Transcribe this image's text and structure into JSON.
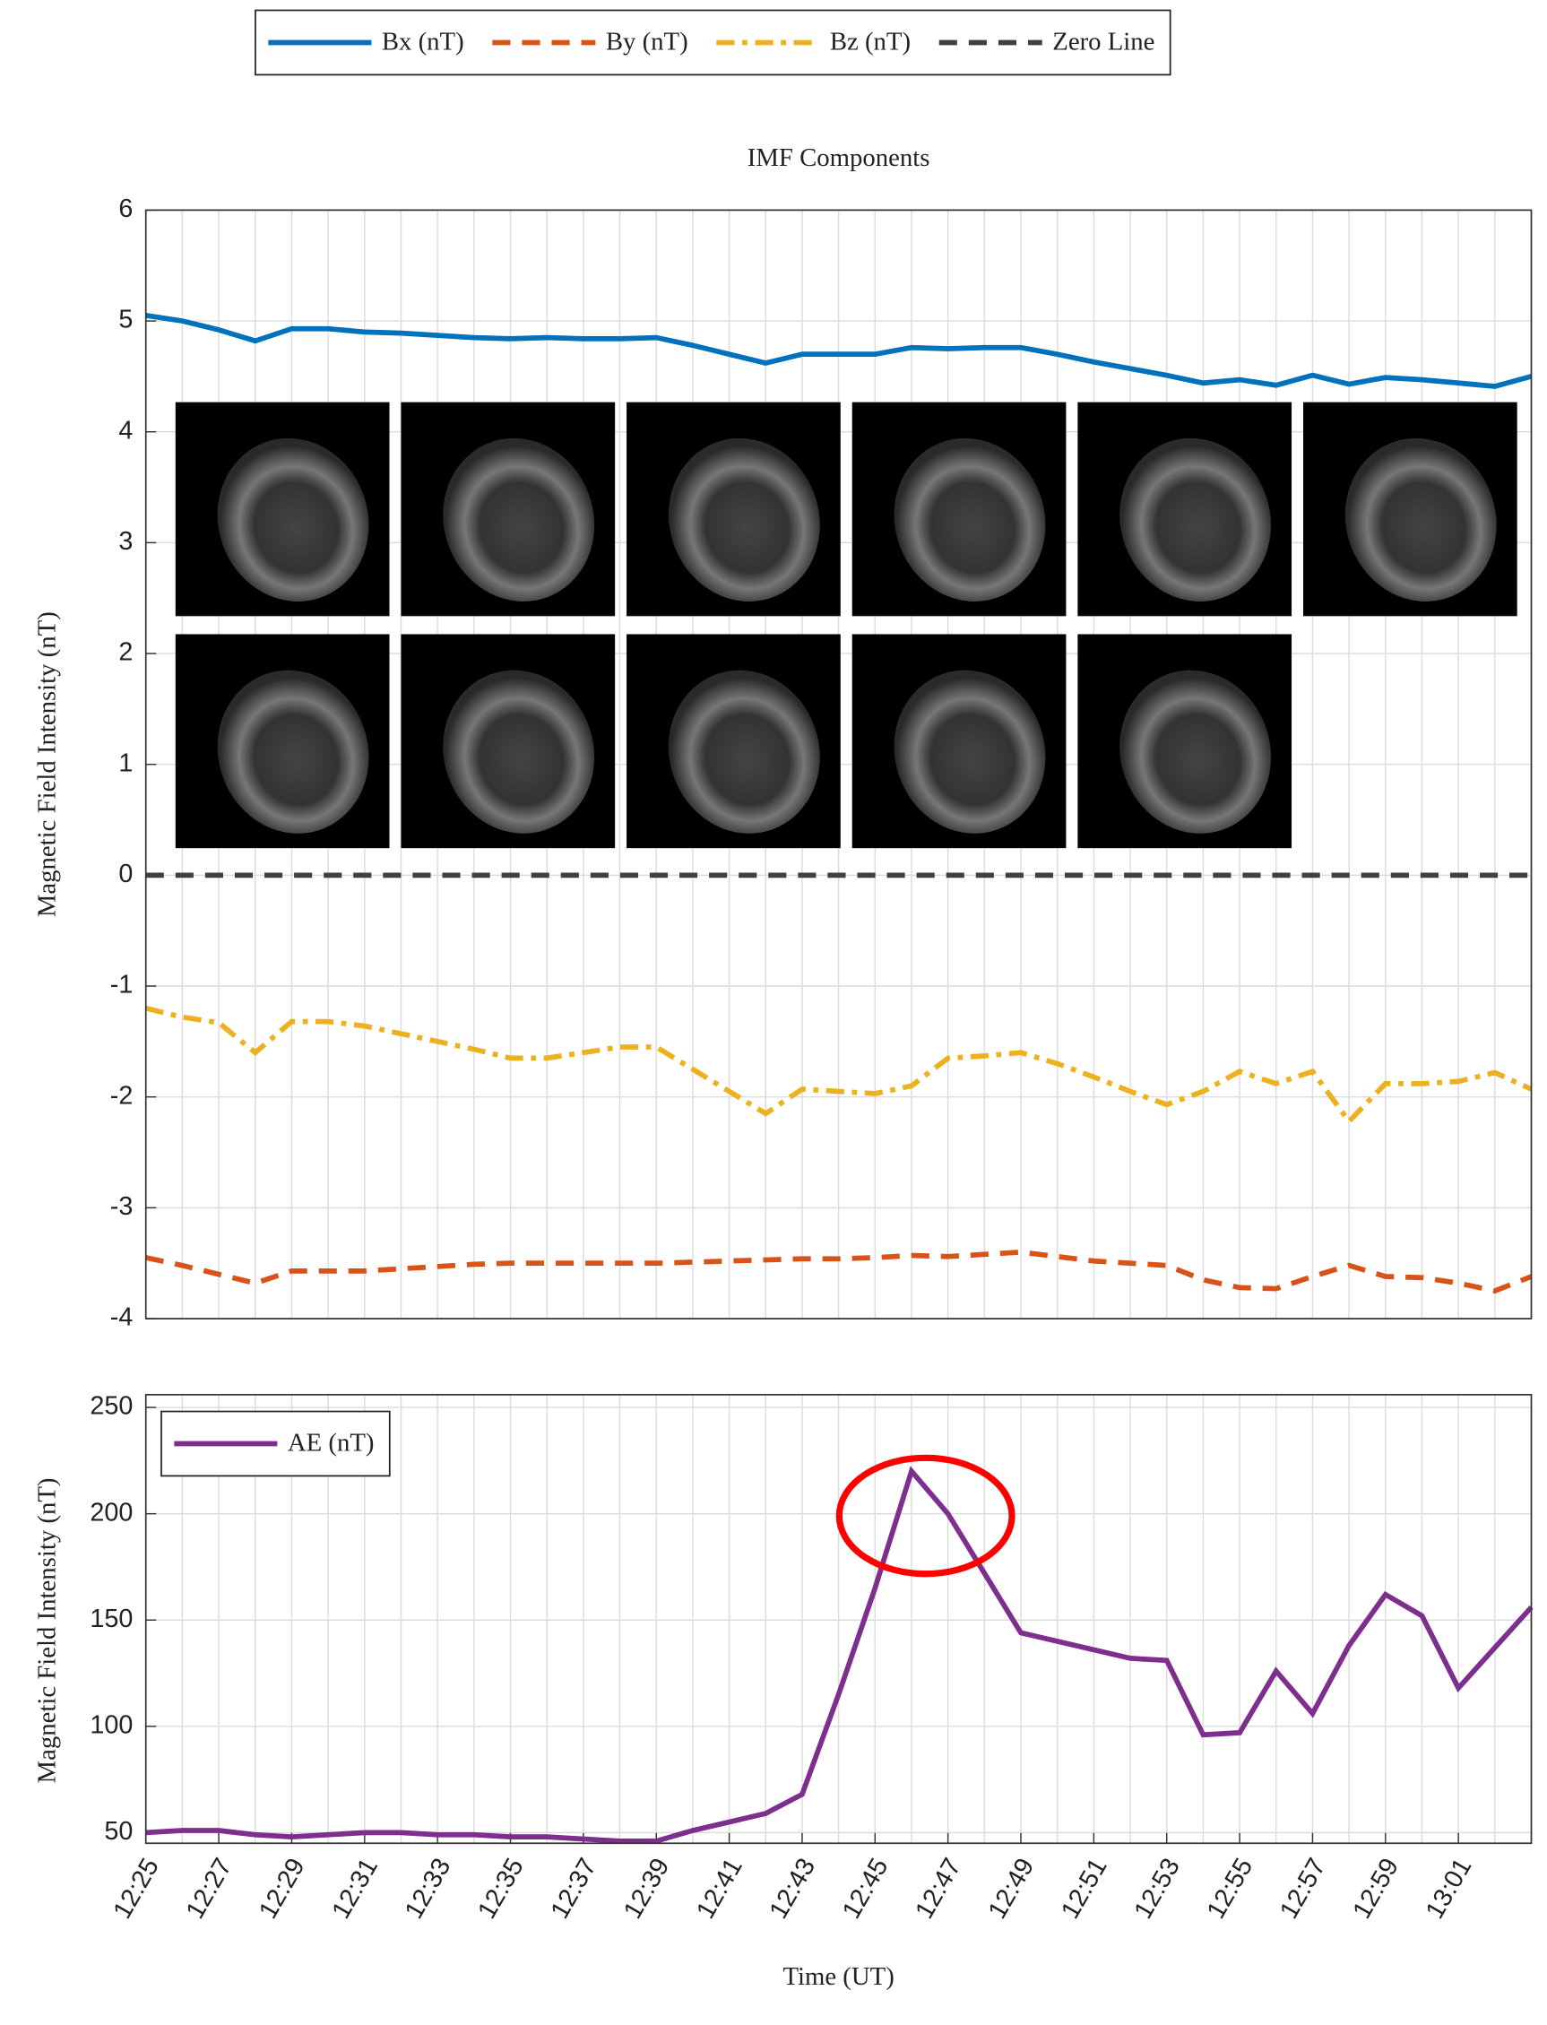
{
  "chart_data": [
    {
      "type": "line",
      "title": "IMF Components",
      "ylabel": "Magnetic Field Intensity (nT)",
      "legend": "top-outside",
      "grid": true,
      "x": [
        "12:25",
        "12:26",
        "12:27",
        "12:28",
        "12:29",
        "12:30",
        "12:31",
        "12:32",
        "12:33",
        "12:34",
        "12:35",
        "12:36",
        "12:37",
        "12:38",
        "12:39",
        "12:40",
        "12:41",
        "12:42",
        "12:43",
        "12:44",
        "12:45",
        "12:46",
        "12:47",
        "12:48",
        "12:49",
        "12:50",
        "12:51",
        "12:52",
        "12:53",
        "12:54",
        "12:55",
        "12:56",
        "12:57",
        "12:58",
        "12:59",
        "13:00",
        "13:01",
        "13:02",
        "13:03"
      ],
      "ylim": [
        -4,
        6
      ],
      "yticks": [
        -4,
        -3,
        -2,
        -1,
        0,
        1,
        2,
        3,
        4,
        5,
        6
      ],
      "series": [
        {
          "name": "Bx (nT)",
          "color": "#0072BD",
          "dash": "solid",
          "values": [
            5.05,
            5.0,
            4.92,
            4.82,
            4.93,
            4.93,
            4.9,
            4.89,
            4.87,
            4.85,
            4.84,
            4.85,
            4.84,
            4.84,
            4.85,
            4.78,
            4.7,
            4.62,
            4.7,
            4.7,
            4.7,
            4.76,
            4.75,
            4.76,
            4.76,
            4.7,
            4.63,
            4.57,
            4.51,
            4.44,
            4.47,
            4.42,
            4.51,
            4.43,
            4.49,
            4.47,
            4.44,
            4.41,
            4.5
          ]
        },
        {
          "name": "By (nT)",
          "color": "#D95319",
          "dash": "dashed",
          "values": [
            -3.45,
            -3.52,
            -3.6,
            -3.68,
            -3.57,
            -3.57,
            -3.57,
            -3.55,
            -3.53,
            -3.51,
            -3.5,
            -3.5,
            -3.5,
            -3.5,
            -3.5,
            -3.49,
            -3.48,
            -3.47,
            -3.46,
            -3.46,
            -3.45,
            -3.43,
            -3.44,
            -3.42,
            -3.4,
            -3.44,
            -3.48,
            -3.5,
            -3.52,
            -3.65,
            -3.72,
            -3.73,
            -3.62,
            -3.52,
            -3.62,
            -3.63,
            -3.68,
            -3.75,
            -3.62
          ]
        },
        {
          "name": "Bz (nT)",
          "color": "#EDB120",
          "dash": "dashdot",
          "values": [
            -1.2,
            -1.28,
            -1.33,
            -1.6,
            -1.32,
            -1.32,
            -1.36,
            -1.43,
            -1.5,
            -1.57,
            -1.65,
            -1.65,
            -1.6,
            -1.55,
            -1.55,
            -1.75,
            -1.95,
            -2.15,
            -1.93,
            -1.95,
            -1.97,
            -1.9,
            -1.65,
            -1.63,
            -1.6,
            -1.7,
            -1.82,
            -1.95,
            -2.07,
            -1.95,
            -1.77,
            -1.88,
            -1.77,
            -2.22,
            -1.88,
            -1.88,
            -1.86,
            -1.78,
            -1.93
          ]
        },
        {
          "name": "Zero Line",
          "color": "#404040",
          "dash": "dashed",
          "values": [
            0,
            0,
            0,
            0,
            0,
            0,
            0,
            0,
            0,
            0,
            0,
            0,
            0,
            0,
            0,
            0,
            0,
            0,
            0,
            0,
            0,
            0,
            0,
            0,
            0,
            0,
            0,
            0,
            0,
            0,
            0,
            0,
            0,
            0,
            0,
            0,
            0,
            0,
            0
          ]
        }
      ]
    },
    {
      "type": "line",
      "ylabel": "Magnetic Field Intensity (nT)",
      "xlabel": "Time (UT)",
      "legend": "upper left",
      "grid": true,
      "x": [
        "12:25",
        "12:26",
        "12:27",
        "12:28",
        "12:29",
        "12:30",
        "12:31",
        "12:32",
        "12:33",
        "12:34",
        "12:35",
        "12:36",
        "12:37",
        "12:38",
        "12:39",
        "12:40",
        "12:41",
        "12:42",
        "12:43",
        "12:44",
        "12:45",
        "12:46",
        "12:47",
        "12:48",
        "12:49",
        "12:50",
        "12:51",
        "12:52",
        "12:53",
        "12:54",
        "12:55",
        "12:56",
        "12:57",
        "12:58",
        "12:59",
        "13:00",
        "13:01",
        "13:02",
        "13:03"
      ],
      "xticks": [
        "12:25",
        "12:27",
        "12:29",
        "12:31",
        "12:33",
        "12:35",
        "12:37",
        "12:39",
        "12:41",
        "12:43",
        "12:45",
        "12:47",
        "12:49",
        "12:51",
        "12:53",
        "12:55",
        "12:57",
        "12:59",
        "13:01"
      ],
      "ylim": [
        45,
        256
      ],
      "yticks": [
        50,
        100,
        150,
        200,
        250
      ],
      "series": [
        {
          "name": "AE (nT)",
          "color": "#7E2F8E",
          "dash": "solid",
          "values": [
            50,
            51,
            51,
            49,
            48,
            49,
            50,
            50,
            49,
            49,
            48,
            48,
            47,
            46,
            46,
            51,
            55,
            59,
            68,
            115,
            165,
            220,
            200,
            172,
            144,
            140,
            136,
            132,
            131,
            96,
            97,
            126,
            106,
            138,
            162,
            152,
            118,
            137,
            156
          ]
        }
      ]
    }
  ]
}
